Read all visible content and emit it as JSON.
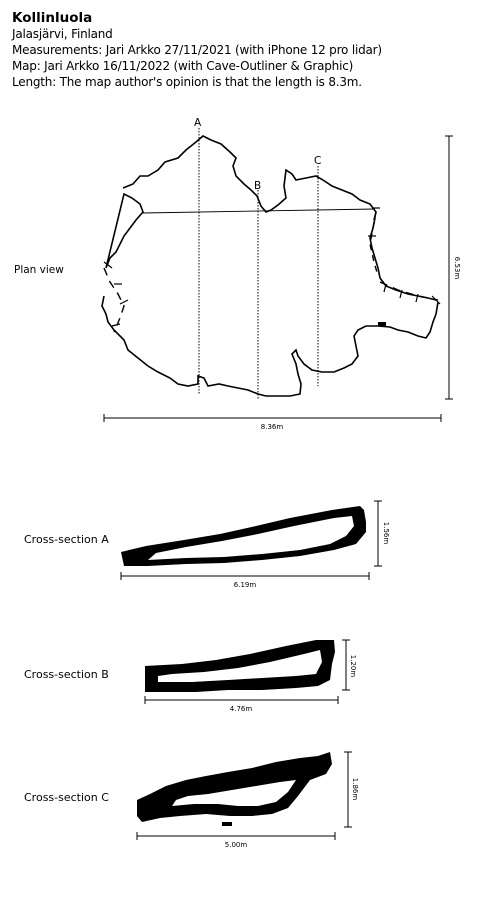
{
  "header": {
    "title": "Kollinluola",
    "location": "Jalasjärvi, Finland",
    "measurements": "Measurements: Jari Arkko 27/11/2021 (with iPhone 12 pro lidar)",
    "map": "Map: Jari Arkko 16/11/2022 (with Cave-Outliner & Graphic)",
    "length": "Length: The map author's opinion is that the length is 8.3m."
  },
  "plan": {
    "label": "Plan view",
    "markers": [
      "A",
      "B",
      "C"
    ],
    "width_dim": "8.36m",
    "height_dim": "6.53m"
  },
  "sections": [
    {
      "label": "Cross-section A",
      "width_dim": "6.19m",
      "height_dim": "1.56m"
    },
    {
      "label": "Cross-section B",
      "width_dim": "4.76m",
      "height_dim": "1.20m"
    },
    {
      "label": "Cross-section C",
      "width_dim": "5.00m",
      "height_dim": "1.86m"
    }
  ]
}
